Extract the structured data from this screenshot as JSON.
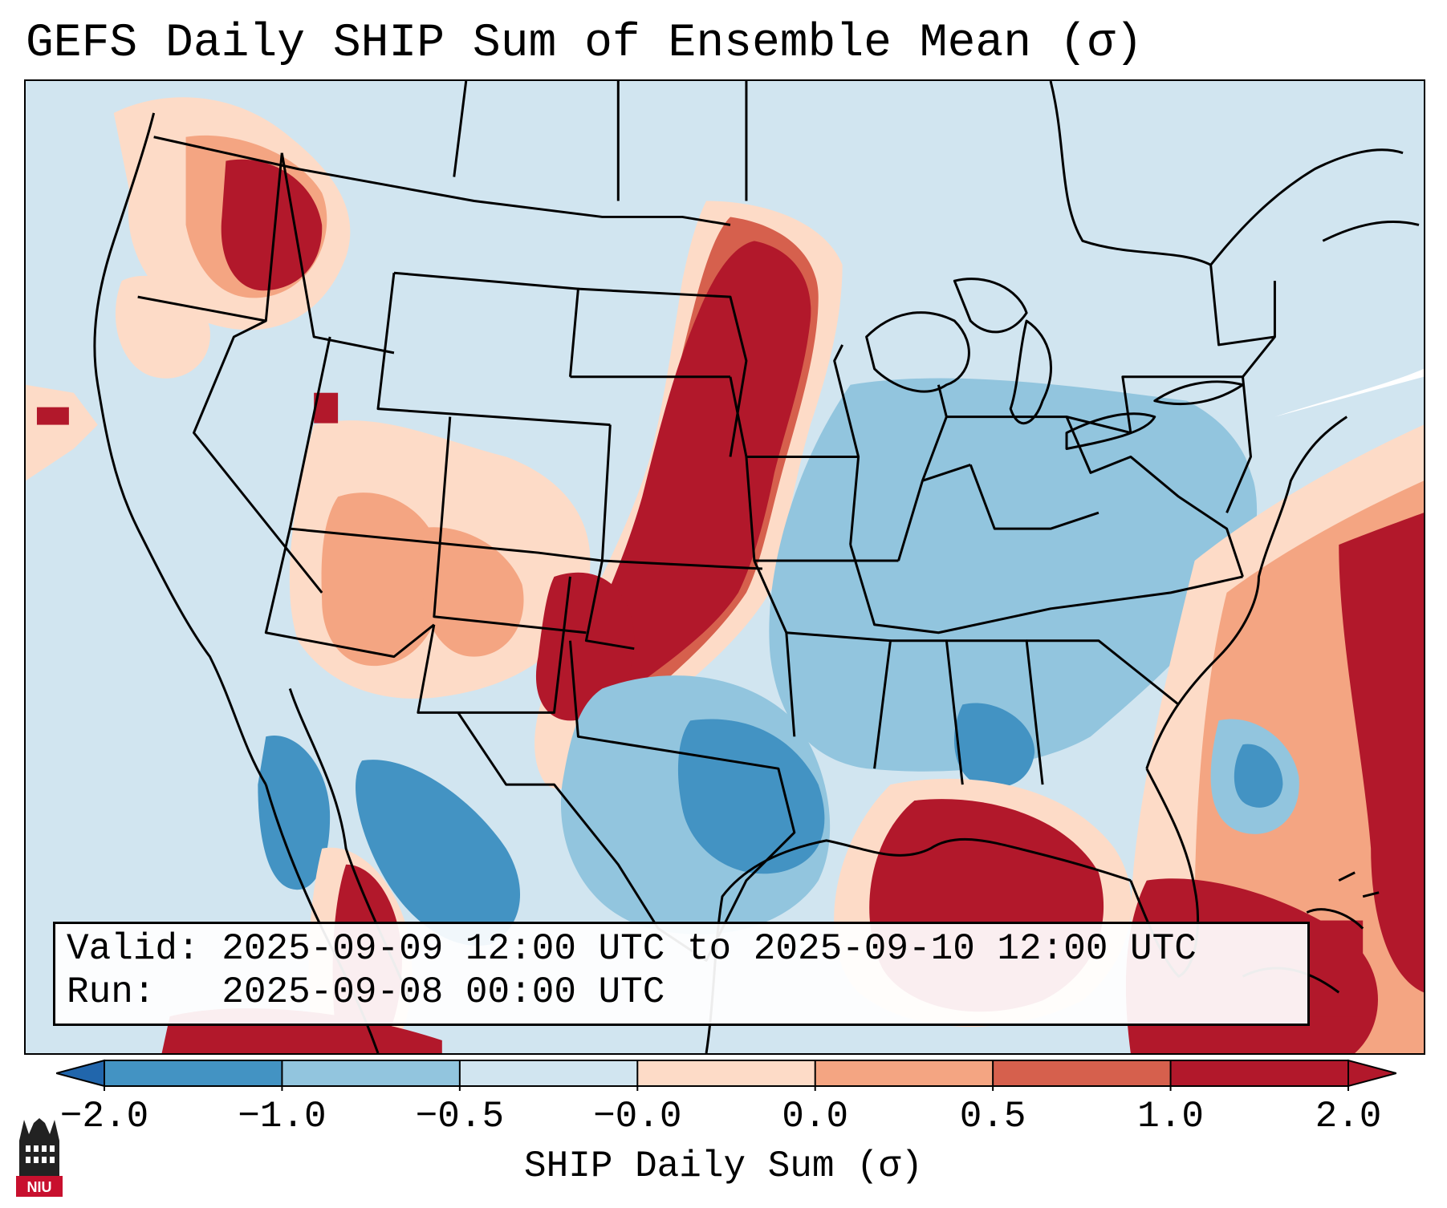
{
  "title": "GEFS Daily SHIP Sum of Ensemble Mean (σ)",
  "info": {
    "valid_label": "Valid:",
    "valid_value": "2025-09-09 12:00 UTC to 2025-09-10 12:00 UTC",
    "run_label": "Run:",
    "run_value": "2025-09-08 00:00 UTC"
  },
  "colorbar": {
    "label": "SHIP Daily Sum (σ)",
    "ticks": [
      "−2.0",
      "−1.0",
      "−0.5",
      "−0.0",
      "0.0",
      "0.5",
      "1.0",
      "2.0"
    ],
    "colors": [
      "#2166ac",
      "#4393c3",
      "#92c5de",
      "#d1e5f0",
      "#fddbc7",
      "#f4a582",
      "#d6604d",
      "#b2182b"
    ],
    "extend": "both"
  },
  "logo": {
    "text": "NIU",
    "icon": "university-tower-icon"
  },
  "map": {
    "projection": "lambert-conic",
    "region": "CONUS",
    "features": [
      "coastlines",
      "state-borders",
      "country-borders"
    ]
  }
}
